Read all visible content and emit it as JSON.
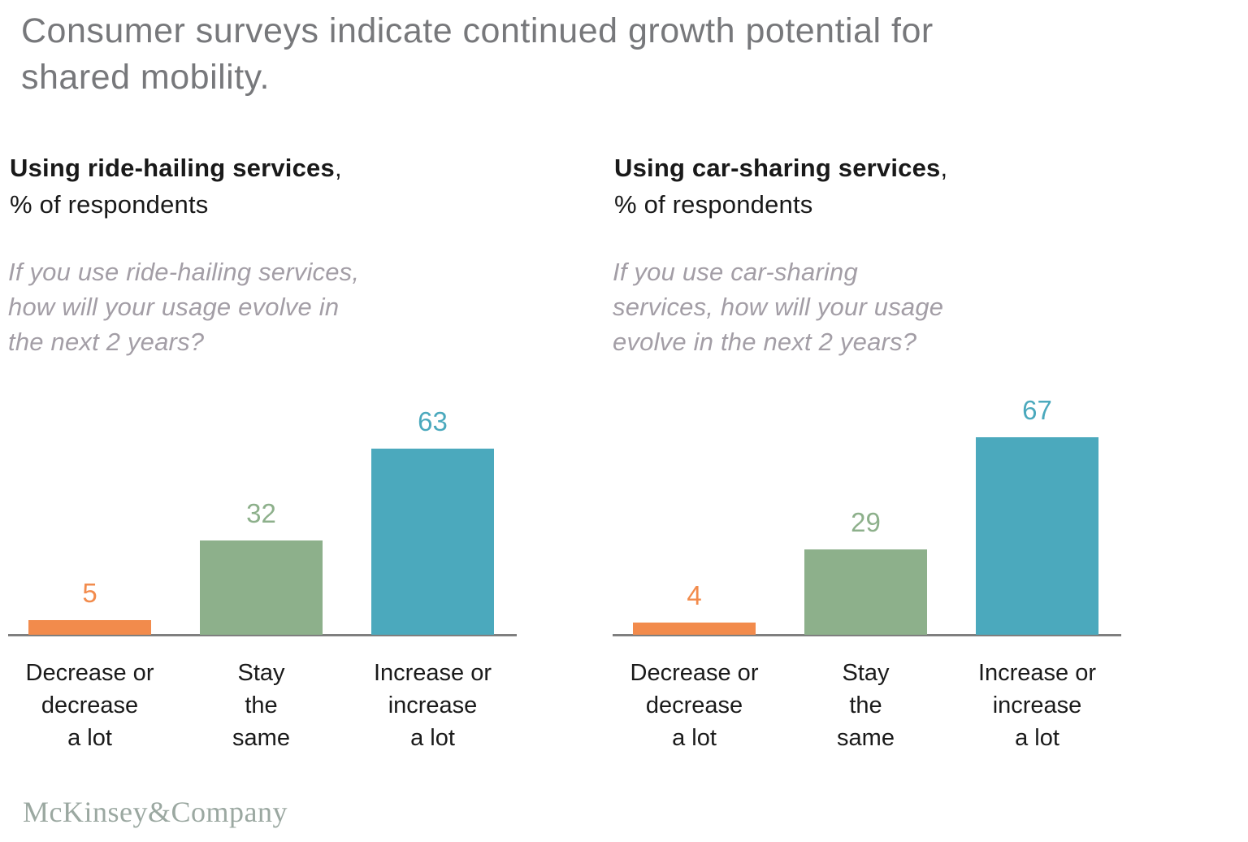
{
  "title": {
    "text": "Consumer surveys indicate continued growth potential for\nshared mobility.",
    "color": "#77787B"
  },
  "footer": {
    "logo_text": "McKinsey&Company",
    "logo_color": "#9BA8A1"
  },
  "colors": {
    "decrease_orange": "#F28B4C",
    "same_green": "#8DB08B",
    "increase_teal": "#4BA9BD",
    "axis_gray": "#7F7F7F",
    "heading_black": "#191919",
    "question_gray": "#A39EA6"
  },
  "chart_data": [
    {
      "type": "bar",
      "title_bold": "Using ride-hailing services",
      "title_suffix": ",",
      "subtitle": "% of respondents",
      "question": "If you use ride-hailing services,\nhow will your usage evolve in\nthe next 2 years?",
      "categories": [
        "Decrease or\ndecrease\na lot",
        "Stay\nthe\nsame",
        "Increase or\nincrease\na lot"
      ],
      "values": [
        5,
        32,
        63
      ],
      "bar_colors": [
        "#F28B4C",
        "#8DB08B",
        "#4BA9BD"
      ],
      "value_labels": [
        "5",
        "32",
        "63"
      ],
      "ylim": [
        0,
        70
      ],
      "grid": false,
      "legend": "none"
    },
    {
      "type": "bar",
      "title_bold": "Using car-sharing services",
      "title_suffix": ",",
      "subtitle": "% of respondents",
      "question": "If you use car-sharing\nservices, how will your usage\nevolve in the next 2 years?",
      "categories": [
        "Decrease or\ndecrease\na lot",
        "Stay\nthe\nsame",
        "Increase or\nincrease\na lot"
      ],
      "values": [
        4,
        29,
        67
      ],
      "bar_colors": [
        "#F28B4C",
        "#8DB08B",
        "#4BA9BD"
      ],
      "value_labels": [
        "4",
        "29",
        "67"
      ],
      "ylim": [
        0,
        70
      ],
      "grid": false,
      "legend": "none"
    }
  ]
}
